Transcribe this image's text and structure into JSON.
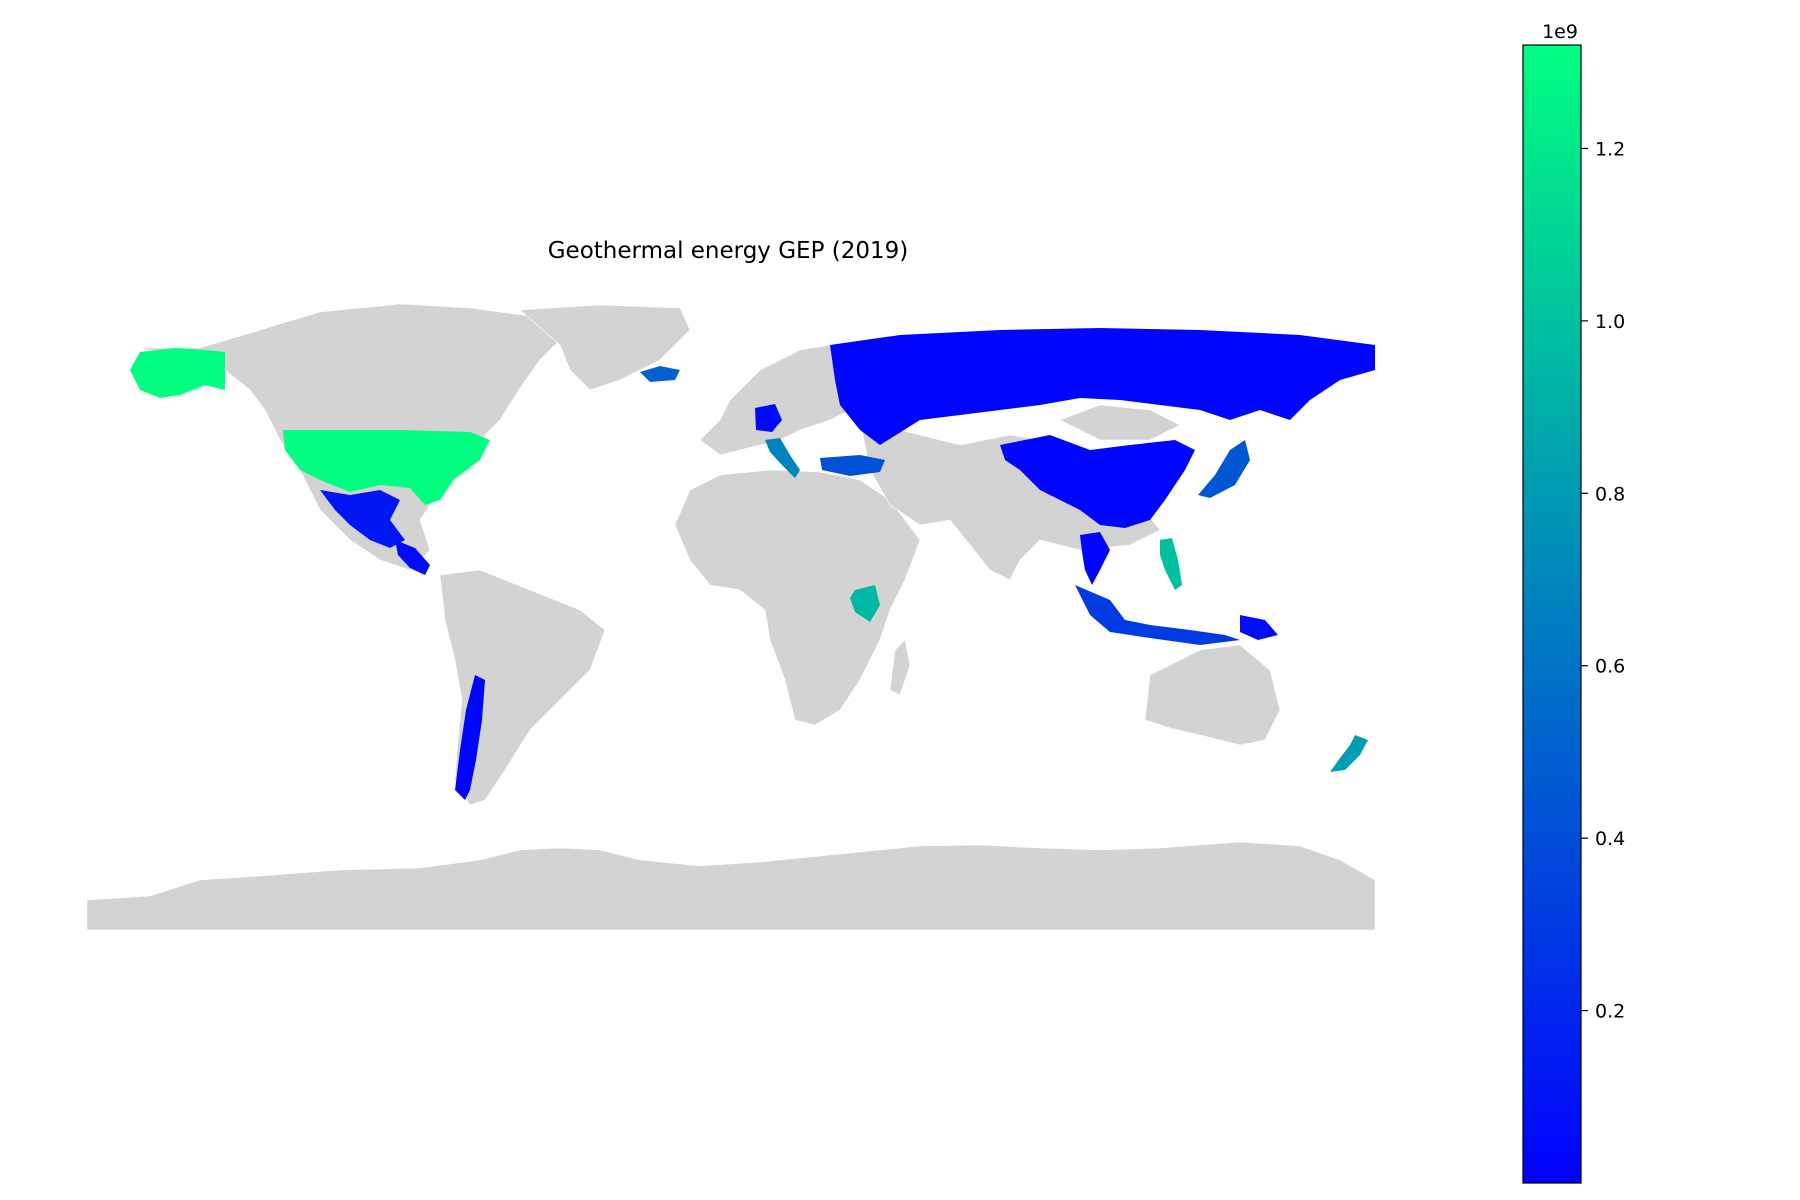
{
  "chart_data": {
    "type": "choropleth",
    "title": "Geothermal energy GEP (2019)",
    "colorbar": {
      "colormap": "winter",
      "color_low": "#0000ff",
      "color_high": "#00ff80",
      "no_data_color": "#d3d3d3",
      "min": 0.0,
      "max": 1.32,
      "exponent_label": "1e9",
      "ticks": [
        {
          "value": 0.2,
          "label": "0.2"
        },
        {
          "value": 0.4,
          "label": "0.4"
        },
        {
          "value": 0.6,
          "label": "0.6"
        },
        {
          "value": 0.8,
          "label": "0.8"
        },
        {
          "value": 1.0,
          "label": "1.0"
        },
        {
          "value": 1.2,
          "label": "1.2"
        }
      ]
    },
    "regions": [
      {
        "name": "United States",
        "value": 1.32
      },
      {
        "name": "Philippines",
        "value": 1.0
      },
      {
        "name": "Kenya",
        "value": 0.95
      },
      {
        "name": "New Zealand",
        "value": 0.82
      },
      {
        "name": "Italy",
        "value": 0.68
      },
      {
        "name": "Iceland",
        "value": 0.5
      },
      {
        "name": "Japan",
        "value": 0.45
      },
      {
        "name": "Turkey",
        "value": 0.42
      },
      {
        "name": "Indonesia",
        "value": 0.3
      },
      {
        "name": "Mexico",
        "value": 0.12
      },
      {
        "name": "Russia",
        "value": 0.03
      },
      {
        "name": "China",
        "value": 0.03
      },
      {
        "name": "Chile",
        "value": 0.03
      },
      {
        "name": "Germany",
        "value": 0.05
      },
      {
        "name": "Thailand",
        "value": 0.03
      },
      {
        "name": "Papua New Guinea",
        "value": 0.08
      },
      {
        "name": "Central America",
        "value": 0.06
      }
    ]
  }
}
